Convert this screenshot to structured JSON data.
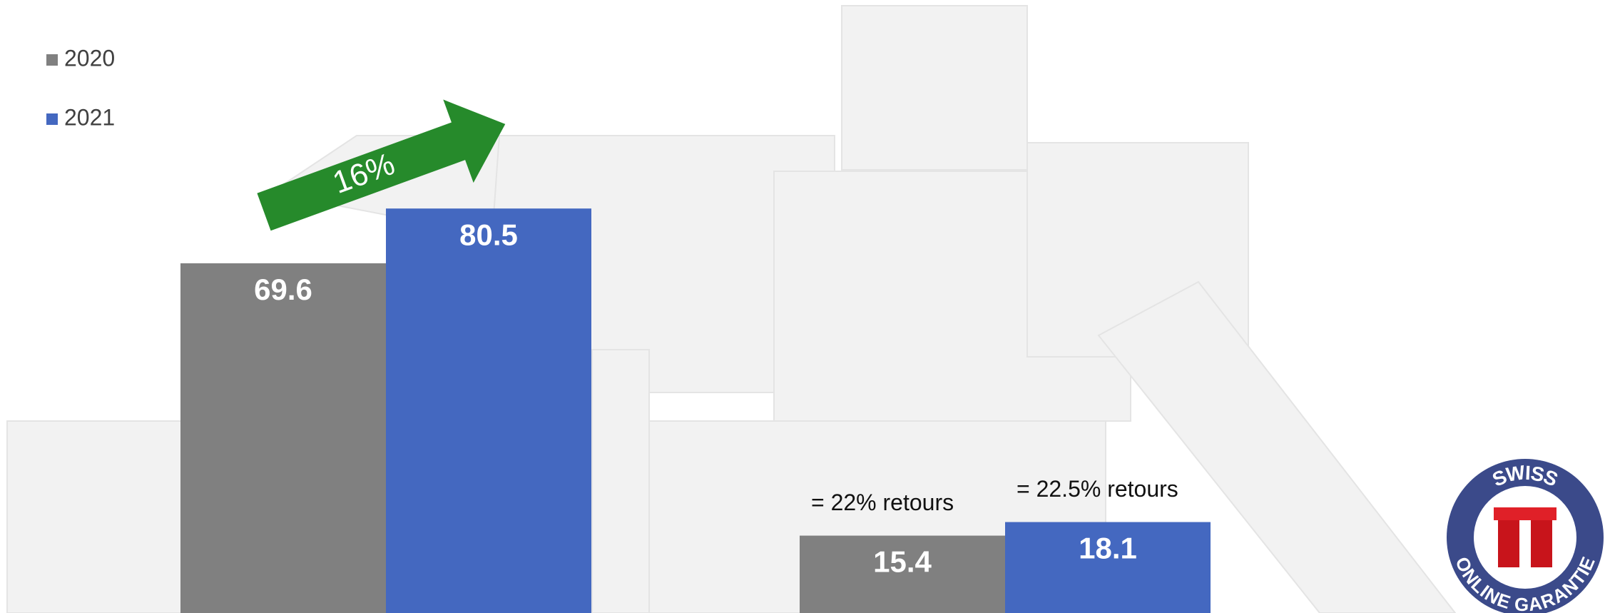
{
  "chart_data": {
    "type": "bar",
    "categories": [
      null,
      null
    ],
    "series": [
      {
        "name": "2020",
        "color": "#808080",
        "values": [
          69.6,
          15.4
        ]
      },
      {
        "name": "2021",
        "color": "#4468c0",
        "values": [
          80.5,
          18.1
        ]
      }
    ],
    "ylim": [
      0,
      122
    ],
    "legend": "top-left",
    "annotations": [
      "16%",
      "= 22% retours",
      "= 22.5% retours"
    ]
  },
  "logo": {
    "top": "SWISS",
    "bottom": "ONLINE GARANTIE"
  }
}
